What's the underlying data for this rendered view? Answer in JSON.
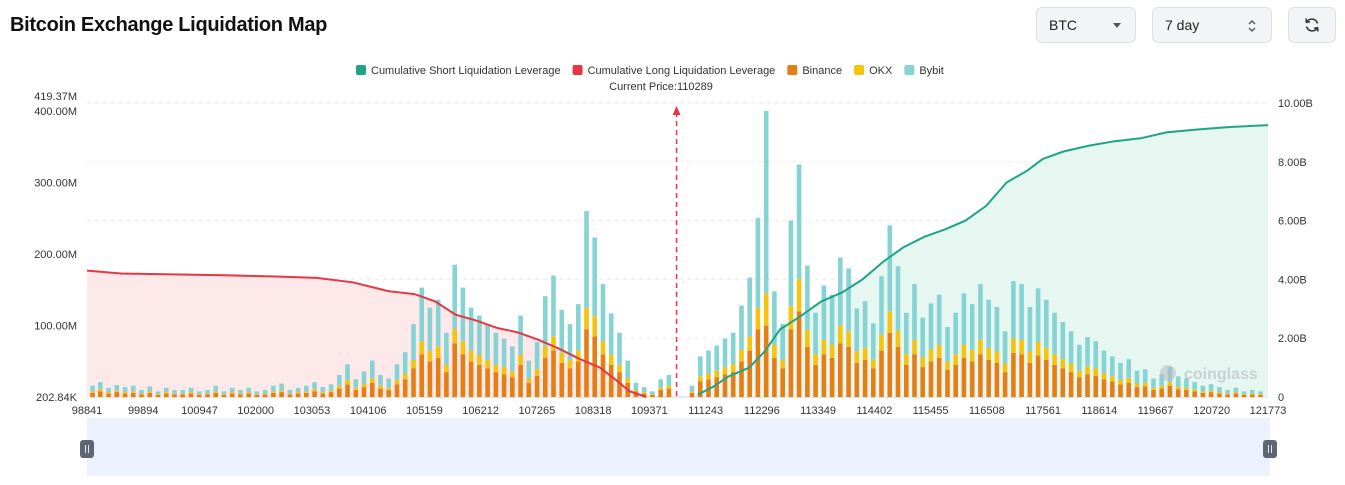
{
  "title": "Bitcoin Exchange Liquidation Map",
  "controls": {
    "coin_value": "BTC",
    "range_value": "7 day",
    "refresh_icon": "refresh-icon"
  },
  "watermark": "coinglass",
  "colors": {
    "short_line": "#1fa487",
    "short_fill": "#e6f6f1",
    "long_line": "#e33744",
    "long_fill": "#fde8ea",
    "binance": "#e67e16",
    "okx": "#f4c40f",
    "bybit": "#86d3d4",
    "price_marker": "#e33744"
  },
  "chart_data": {
    "type": "bar",
    "legend": [
      {
        "name": "Cumulative Short Liquidation Leverage",
        "color": "#1fa487"
      },
      {
        "name": "Cumulative Long Liquidation Leverage",
        "color": "#e33744"
      },
      {
        "name": "Binance",
        "color": "#e67e16"
      },
      {
        "name": "OKX",
        "color": "#f4c40f"
      },
      {
        "name": "Bybit",
        "color": "#86d3d4"
      }
    ],
    "current_price_label": "Current Price:110289",
    "current_price": 110289,
    "x_range": [
      98841,
      121773
    ],
    "x_ticks": [
      "98841",
      "99894",
      "100947",
      "102000",
      "103053",
      "104106",
      "105159",
      "106212",
      "107265",
      "108318",
      "109371",
      "111243",
      "112296",
      "113349",
      "114402",
      "115455",
      "116508",
      "117561",
      "118614",
      "119667",
      "120720",
      "121773"
    ],
    "y_left_ticks": [
      "202.84K",
      "100.00M",
      "200.00M",
      "300.00M",
      "400.00M",
      "419.37M"
    ],
    "y_left_range": [
      0.20284,
      419.37
    ],
    "y_left_unit": "M",
    "y_right_ticks": [
      "0",
      "2.00B",
      "4.00B",
      "6.00B",
      "8.00B",
      "10.00B"
    ],
    "y_right_range": [
      0,
      10
    ],
    "y_right_unit": "B",
    "cum_long": {
      "name": "Cumulative Long Liquidation Leverage",
      "x": [
        98841,
        99500,
        100500,
        101500,
        102500,
        103300,
        104000,
        104700,
        105200,
        105600,
        106000,
        106400,
        106800,
        107200,
        107600,
        108000,
        108400,
        108800,
        109100,
        109371,
        109700
      ],
      "y": [
        4.3,
        4.2,
        4.17,
        4.14,
        4.1,
        4.05,
        3.9,
        3.6,
        3.5,
        3.25,
        2.8,
        2.6,
        2.35,
        2.2,
        1.95,
        1.65,
        1.3,
        1.0,
        0.6,
        0.2,
        0.0
      ]
    },
    "cum_short": {
      "name": "Cumulative Short Liquidation Leverage",
      "x": [
        110700,
        111000,
        111300,
        111700,
        112000,
        112300,
        112700,
        113100,
        113500,
        113900,
        114300,
        114700,
        115100,
        115500,
        115900,
        116300,
        116700,
        117100,
        117400,
        117800,
        118300,
        118800,
        119300,
        119800,
        120400,
        121000,
        121773
      ],
      "y": [
        0.08,
        0.35,
        0.7,
        1.0,
        1.55,
        2.3,
        2.75,
        3.25,
        3.55,
        4.0,
        4.6,
        5.1,
        5.45,
        5.7,
        6.0,
        6.5,
        7.3,
        7.7,
        8.1,
        8.35,
        8.55,
        8.7,
        8.8,
        9.0,
        9.1,
        9.18,
        9.25
      ]
    },
    "liquidation_bars": {
      "x": [
        98950,
        99100,
        99260,
        99420,
        99580,
        99740,
        99900,
        100060,
        100220,
        100380,
        100540,
        100700,
        100860,
        101020,
        101180,
        101340,
        101500,
        101660,
        101820,
        101980,
        102140,
        102300,
        102460,
        102620,
        102780,
        102940,
        103100,
        103260,
        103420,
        103580,
        103740,
        103900,
        104060,
        104220,
        104380,
        104540,
        104700,
        104860,
        105020,
        105180,
        105340,
        105500,
        105660,
        105820,
        105980,
        106140,
        106300,
        106460,
        106620,
        106780,
        106940,
        107100,
        107260,
        107420,
        107580,
        107740,
        107900,
        108060,
        108220,
        108380,
        108540,
        108700,
        108860,
        109020,
        109180,
        109340,
        109500,
        109660,
        109820,
        109980,
        110140,
        110589,
        110749,
        110909,
        111069,
        111229,
        111389,
        111549,
        111709,
        111869,
        112029,
        112189,
        112349,
        112509,
        112669,
        112829,
        112989,
        113149,
        113309,
        113469,
        113629,
        113789,
        113949,
        114109,
        114269,
        114429,
        114589,
        114749,
        114909,
        115069,
        115229,
        115389,
        115549,
        115709,
        115869,
        116029,
        116189,
        116349,
        116509,
        116669,
        116829,
        116989,
        117149,
        117309,
        117469,
        117629,
        117789,
        117949,
        118109,
        118269,
        118429,
        118589,
        118749,
        118909,
        119069,
        119229,
        119389,
        119549,
        119709,
        119869,
        120029,
        120189,
        120349,
        120509,
        120669,
        120829,
        120989,
        121149,
        121309,
        121469,
        121629
      ],
      "binance": [
        6,
        8,
        5,
        7,
        5,
        6,
        4,
        6,
        3,
        5,
        4,
        4,
        5,
        3,
        4,
        6,
        3,
        5,
        4,
        5,
        3,
        4,
        6,
        7,
        4,
        5,
        6,
        8,
        5,
        7,
        12,
        18,
        10,
        14,
        20,
        12,
        10,
        18,
        25,
        40,
        60,
        50,
        55,
        35,
        75,
        60,
        50,
        45,
        40,
        35,
        32,
        28,
        45,
        20,
        30,
        55,
        65,
        48,
        40,
        50,
        95,
        85,
        60,
        45,
        35,
        20,
        8,
        5,
        3,
        10,
        12,
        6,
        22,
        25,
        28,
        32,
        35,
        50,
        65,
        95,
        100,
        55,
        40,
        95,
        120,
        70,
        45,
        60,
        55,
        75,
        70,
        48,
        52,
        40,
        65,
        90,
        70,
        45,
        60,
        42,
        50,
        55,
        38,
        45,
        55,
        50,
        60,
        52,
        48,
        35,
        62,
        60,
        48,
        58,
        52,
        45,
        40,
        35,
        28,
        32,
        30,
        25,
        22,
        18,
        20,
        14,
        15,
        10,
        12,
        16,
        11,
        10,
        8,
        6,
        7,
        5,
        4,
        5,
        3,
        4,
        3
      ],
      "okx": [
        2,
        3,
        2,
        2,
        2,
        2,
        1,
        2,
        1,
        2,
        1,
        1,
        2,
        1,
        1,
        2,
        1,
        2,
        1,
        2,
        1,
        1,
        2,
        2,
        1,
        2,
        2,
        3,
        2,
        2,
        4,
        6,
        3,
        5,
        6,
        4,
        3,
        6,
        8,
        12,
        18,
        15,
        16,
        10,
        20,
        18,
        15,
        14,
        12,
        10,
        10,
        8,
        14,
        6,
        9,
        16,
        20,
        14,
        12,
        15,
        30,
        28,
        18,
        14,
        10,
        6,
        2,
        2,
        1,
        3,
        4,
        2,
        7,
        8,
        9,
        10,
        11,
        16,
        20,
        30,
        45,
        18,
        12,
        32,
        45,
        24,
        15,
        20,
        18,
        25,
        22,
        16,
        17,
        13,
        22,
        30,
        23,
        15,
        20,
        14,
        17,
        18,
        12,
        15,
        18,
        16,
        20,
        17,
        16,
        12,
        20,
        20,
        16,
        19,
        17,
        15,
        13,
        12,
        9,
        11,
        10,
        8,
        7,
        6,
        7,
        5,
        5,
        3,
        4,
        5,
        4,
        3,
        3,
        2,
        2,
        2,
        1,
        2,
        1,
        1,
        1
      ],
      "bybit": [
        8,
        10,
        6,
        8,
        7,
        8,
        5,
        7,
        4,
        6,
        5,
        5,
        6,
        4,
        5,
        8,
        4,
        6,
        5,
        6,
        4,
        5,
        8,
        10,
        5,
        6,
        8,
        10,
        7,
        9,
        15,
        22,
        12,
        17,
        25,
        15,
        13,
        22,
        30,
        50,
        75,
        60,
        65,
        45,
        90,
        75,
        60,
        55,
        50,
        45,
        40,
        35,
        55,
        25,
        38,
        70,
        85,
        60,
        50,
        65,
        135,
        110,
        80,
        58,
        45,
        25,
        10,
        7,
        4,
        12,
        15,
        8,
        28,
        32,
        35,
        40,
        44,
        62,
        82,
        125,
        255,
        75,
        50,
        120,
        160,
        90,
        58,
        76,
        70,
        95,
        88,
        60,
        65,
        50,
        82,
        120,
        90,
        58,
        78,
        55,
        64,
        70,
        48,
        58,
        72,
        64,
        78,
        67,
        62,
        45,
        80,
        78,
        62,
        75,
        67,
        58,
        52,
        45,
        36,
        41,
        38,
        32,
        28,
        24,
        26,
        18,
        19,
        13,
        16,
        21,
        14,
        13,
        10,
        8,
        9,
        7,
        5,
        6,
        4,
        5,
        4
      ]
    }
  }
}
